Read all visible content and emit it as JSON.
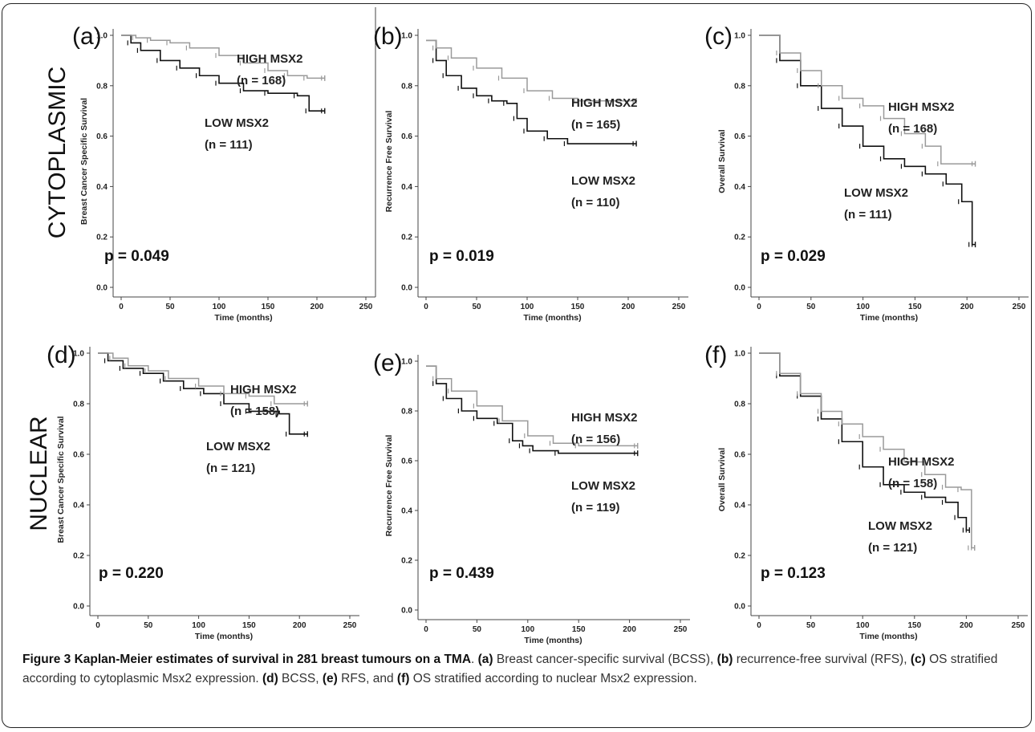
{
  "colors": {
    "high": "#9a9a9a",
    "low": "#111111",
    "axis": "#444444"
  },
  "row_labels": [
    "CYTOPLASMIC",
    "NUCLEAR"
  ],
  "caption": {
    "title": "Figure 3 Kaplan-Meier estimates of survival in 281 breast tumours on a TMA",
    "segments": [
      {
        "t": ". ",
        "b": false
      },
      {
        "t": "(a)",
        "b": true
      },
      {
        "t": " Breast cancer-specific survival (BCSS), ",
        "b": false
      },
      {
        "t": "(b)",
        "b": true
      },
      {
        "t": " recurrence-free survival (RFS), ",
        "b": false
      },
      {
        "t": "(c)",
        "b": true
      },
      {
        "t": " OS stratified according to cytoplasmic Msx2 expression. ",
        "b": false
      },
      {
        "t": "(d)",
        "b": true
      },
      {
        "t": " BCSS, ",
        "b": false
      },
      {
        "t": "(e)",
        "b": true
      },
      {
        "t": " RFS, and ",
        "b": false
      },
      {
        "t": "(f)",
        "b": true
      },
      {
        "t": " OS stratified according to nuclear Msx2 expression.",
        "b": false
      }
    ]
  },
  "chart_data": [
    {
      "type": "line",
      "panel": "(a)",
      "ylabel": "Breast Cancer Specific Survival",
      "xlabel": "Time (months)",
      "xlim": [
        0,
        250
      ],
      "ylim": [
        0,
        1.0
      ],
      "xticks": [
        "0",
        "50",
        "100",
        "150",
        "200",
        "250"
      ],
      "yticks": [
        "0.0",
        "0.2",
        "0.4",
        "0.6",
        "0.8",
        "1.0"
      ],
      "p_value": "p = 0.049",
      "annotations": [
        {
          "series": "high",
          "lines": [
            "HIGH MSX2",
            "(n = 168)"
          ]
        },
        {
          "series": "low",
          "lines": [
            "LOW MSX2",
            "(n = 111)"
          ]
        }
      ],
      "series": [
        {
          "key": "high",
          "x": [
            0,
            15,
            30,
            50,
            70,
            100,
            125,
            150,
            170,
            190,
            208
          ],
          "y": [
            1.0,
            0.99,
            0.98,
            0.97,
            0.95,
            0.92,
            0.89,
            0.86,
            0.84,
            0.83,
            0.83
          ]
        },
        {
          "key": "low",
          "x": [
            0,
            10,
            20,
            40,
            60,
            80,
            100,
            125,
            150,
            180,
            192,
            208
          ],
          "y": [
            1.0,
            0.97,
            0.94,
            0.9,
            0.87,
            0.84,
            0.81,
            0.78,
            0.77,
            0.76,
            0.7,
            0.7
          ]
        }
      ]
    },
    {
      "type": "line",
      "panel": "(b)",
      "ylabel": "Recurrence Free Survival",
      "xlabel": "Time (months)",
      "xlim": [
        0,
        250
      ],
      "ylim": [
        0,
        1.0
      ],
      "xticks": [
        "0",
        "50",
        "100",
        "150",
        "200",
        "250"
      ],
      "yticks": [
        "0.0",
        "0.2",
        "0.4",
        "0.6",
        "0.8",
        "1.0"
      ],
      "p_value": "p = 0.019",
      "annotations": [
        {
          "series": "high",
          "lines": [
            "HIGH MSX2",
            "(n = 165)"
          ]
        },
        {
          "series": "low",
          "lines": [
            "LOW MSX2",
            "(n = 110)"
          ]
        }
      ],
      "series": [
        {
          "key": "high",
          "x": [
            0,
            10,
            25,
            50,
            75,
            100,
            125,
            150,
            208
          ],
          "y": [
            0.98,
            0.95,
            0.91,
            0.87,
            0.83,
            0.78,
            0.75,
            0.74,
            0.74
          ]
        },
        {
          "key": "low",
          "x": [
            0,
            10,
            20,
            35,
            50,
            65,
            80,
            90,
            100,
            120,
            140,
            208
          ],
          "y": [
            0.98,
            0.9,
            0.84,
            0.79,
            0.76,
            0.74,
            0.73,
            0.67,
            0.62,
            0.59,
            0.57,
            0.57
          ]
        }
      ]
    },
    {
      "type": "line",
      "panel": "(c)",
      "ylabel": "Overall Survival",
      "xlabel": "Time (months)",
      "xlim": [
        0,
        250
      ],
      "ylim": [
        0,
        1.0
      ],
      "xticks": [
        "0",
        "50",
        "100",
        "150",
        "200",
        "250"
      ],
      "yticks": [
        "0.0",
        "0.2",
        "0.4",
        "0.6",
        "0.8",
        "1.0"
      ],
      "p_value": "p = 0.029",
      "annotations": [
        {
          "series": "high",
          "lines": [
            "HIGH MSX2",
            "(n = 168)"
          ]
        },
        {
          "series": "low",
          "lines": [
            "LOW MSX2",
            "(n = 111)"
          ]
        }
      ],
      "series": [
        {
          "key": "high",
          "x": [
            0,
            20,
            40,
            60,
            80,
            100,
            120,
            140,
            160,
            175,
            208
          ],
          "y": [
            1.0,
            0.93,
            0.86,
            0.8,
            0.75,
            0.72,
            0.67,
            0.61,
            0.56,
            0.49,
            0.49
          ]
        },
        {
          "key": "low",
          "x": [
            0,
            20,
            40,
            60,
            80,
            100,
            120,
            140,
            160,
            180,
            195,
            205,
            208
          ],
          "y": [
            1.0,
            0.9,
            0.8,
            0.71,
            0.64,
            0.56,
            0.51,
            0.48,
            0.45,
            0.41,
            0.34,
            0.17,
            0.17
          ]
        }
      ]
    },
    {
      "type": "line",
      "panel": "(d)",
      "ylabel": "Breast Cancer Specific Survival",
      "xlabel": "Time (months)",
      "xlim": [
        0,
        250
      ],
      "ylim": [
        0,
        1.0
      ],
      "xticks": [
        "0",
        "50",
        "100",
        "150",
        "200",
        "250"
      ],
      "yticks": [
        "0.0",
        "0.2",
        "0.4",
        "0.6",
        "0.8",
        "1.0"
      ],
      "p_value": "p = 0.220",
      "annotations": [
        {
          "series": "high",
          "lines": [
            "HIGH MSX2",
            "(n = 158)"
          ]
        },
        {
          "series": "low",
          "lines": [
            "LOW MSX2",
            "(n = 121)"
          ]
        }
      ],
      "series": [
        {
          "key": "high",
          "x": [
            0,
            15,
            30,
            50,
            70,
            100,
            125,
            150,
            175,
            208
          ],
          "y": [
            1.0,
            0.98,
            0.95,
            0.93,
            0.9,
            0.87,
            0.84,
            0.83,
            0.8,
            0.8
          ]
        },
        {
          "key": "low",
          "x": [
            0,
            10,
            25,
            45,
            65,
            85,
            105,
            125,
            150,
            180,
            190,
            208
          ],
          "y": [
            1.0,
            0.97,
            0.94,
            0.92,
            0.89,
            0.86,
            0.84,
            0.8,
            0.77,
            0.76,
            0.68,
            0.68
          ]
        }
      ]
    },
    {
      "type": "line",
      "panel": "(e)",
      "ylabel": "Recurrence Free Survival",
      "xlabel": "Time (months)",
      "xlim": [
        0,
        250
      ],
      "ylim": [
        0,
        1.0
      ],
      "xticks": [
        "0",
        "50",
        "100",
        "150",
        "200",
        "250"
      ],
      "yticks": [
        "0.0",
        "0.2",
        "0.4",
        "0.6",
        "0.8",
        "1.0"
      ],
      "p_value": "p = 0.439",
      "annotations": [
        {
          "series": "high",
          "lines": [
            "HIGH MSX2",
            "(n = 156)"
          ]
        },
        {
          "series": "low",
          "lines": [
            "LOW MSX2",
            "(n = 119)"
          ]
        }
      ],
      "series": [
        {
          "key": "high",
          "x": [
            0,
            10,
            25,
            50,
            75,
            100,
            125,
            150,
            208
          ],
          "y": [
            0.98,
            0.93,
            0.88,
            0.82,
            0.76,
            0.7,
            0.67,
            0.66,
            0.66
          ]
        },
        {
          "key": "low",
          "x": [
            0,
            10,
            20,
            35,
            50,
            70,
            85,
            95,
            105,
            130,
            208
          ],
          "y": [
            0.98,
            0.91,
            0.85,
            0.8,
            0.77,
            0.75,
            0.68,
            0.66,
            0.64,
            0.63,
            0.63
          ]
        }
      ]
    },
    {
      "type": "line",
      "panel": "(f)",
      "ylabel": "Overall Survival",
      "xlabel": "Time (months)",
      "xlim": [
        0,
        250
      ],
      "ylim": [
        0,
        1.0
      ],
      "xticks": [
        "0",
        "50",
        "100",
        "150",
        "200",
        "250"
      ],
      "yticks": [
        "0.0",
        "0.2",
        "0.4",
        "0.6",
        "0.8",
        "1.0"
      ],
      "p_value": "p = 0.123",
      "annotations": [
        {
          "series": "high",
          "lines": [
            "HIGH MSX2",
            "(n = 158)"
          ]
        },
        {
          "series": "low",
          "lines": [
            "LOW MSX2",
            "(n = 121)"
          ]
        }
      ],
      "series": [
        {
          "key": "high",
          "x": [
            0,
            20,
            40,
            60,
            80,
            100,
            120,
            140,
            160,
            180,
            195,
            205,
            208
          ],
          "y": [
            1.0,
            0.92,
            0.84,
            0.77,
            0.72,
            0.67,
            0.62,
            0.57,
            0.52,
            0.47,
            0.46,
            0.23,
            0.23
          ]
        },
        {
          "key": "low",
          "x": [
            0,
            20,
            40,
            60,
            80,
            100,
            120,
            140,
            160,
            180,
            192,
            200,
            203
          ],
          "y": [
            1.0,
            0.91,
            0.83,
            0.74,
            0.65,
            0.55,
            0.48,
            0.45,
            0.43,
            0.41,
            0.35,
            0.3,
            0.3
          ]
        }
      ]
    }
  ]
}
